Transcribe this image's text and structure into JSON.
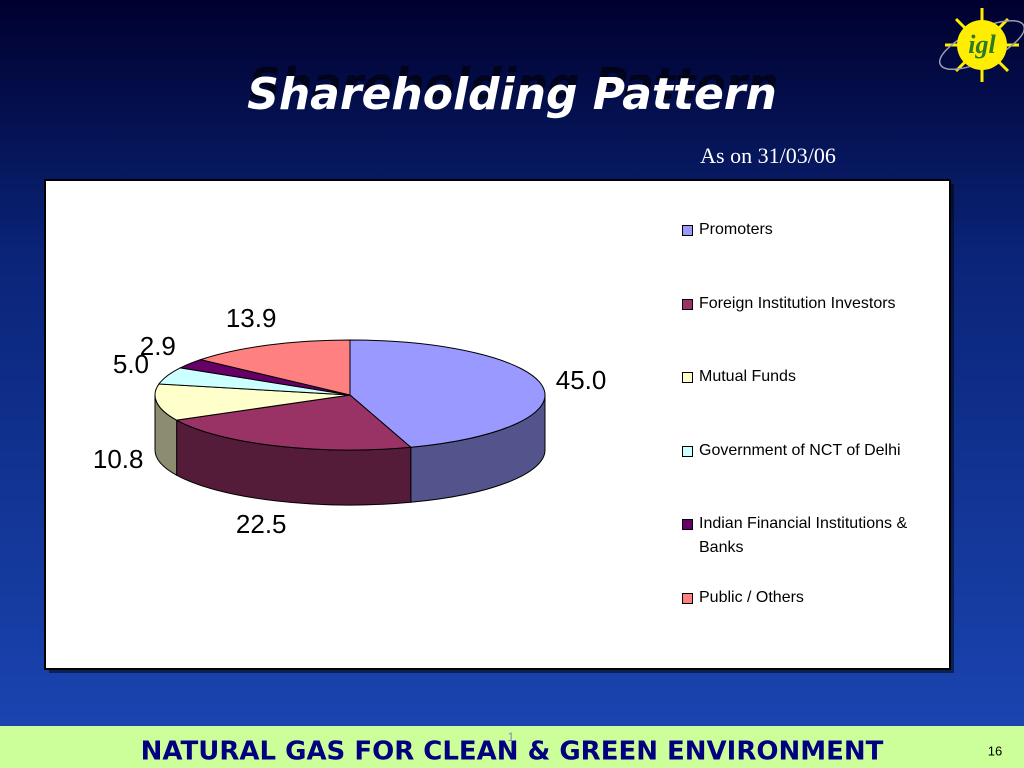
{
  "logo": "igl",
  "chart_data": {
    "type": "pie3d",
    "title": "Shareholding Pattern",
    "subtitle": "As on 31/03/06",
    "categories": [
      "Promoters",
      "Foreign Institution Investors",
      "Mutual Funds",
      "Government of NCT of Delhi",
      "Indian Financial Institutions  & Banks",
      "Public / Others"
    ],
    "values": [
      45,
      22.5,
      10.8,
      5,
      2.9,
      13.9
    ],
    "value_labels": [
      "45.0",
      "22.5",
      "10.8",
      "5.0",
      "2.9",
      "13.9"
    ],
    "colors": [
      "#9999ff",
      "#993366",
      "#ffffcc",
      "#ccffff",
      "#660066",
      "#ff8080"
    ],
    "legend": "right"
  },
  "footer": {
    "text": "NATURAL GAS FOR CLEAN & GREEN ENVIRONMENT",
    "mark": "1",
    "page_number": "16"
  }
}
